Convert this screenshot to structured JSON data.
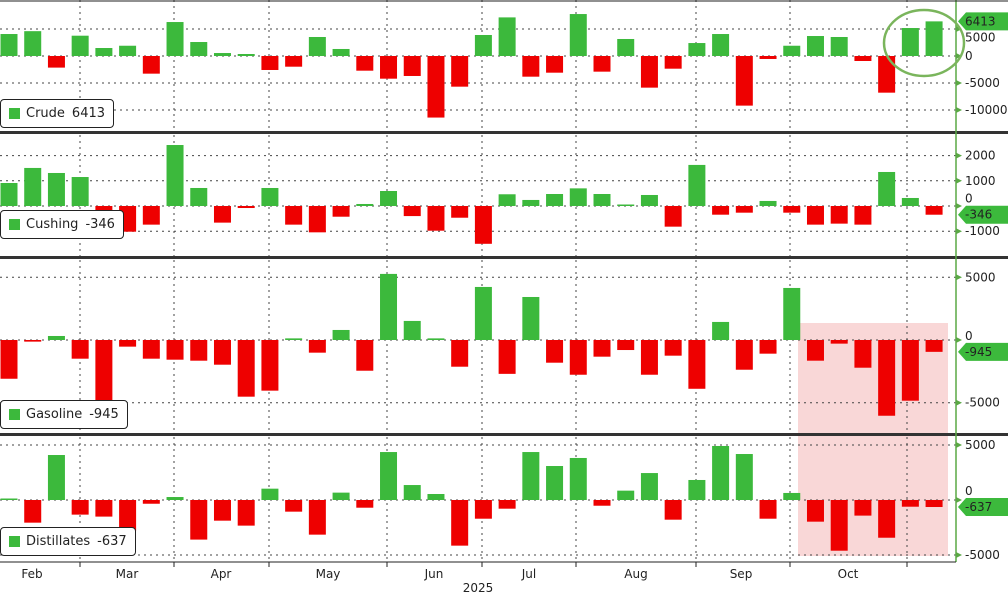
{
  "chart_data": {
    "type": "bar",
    "x_tick_labels": [
      "Feb",
      "Mar",
      "Apr",
      "May",
      "Jun",
      "Jul",
      "Aug",
      "Sep",
      "Oct"
    ],
    "year_label": "2025",
    "colors": {
      "positive": "#3cb93c",
      "negative": "#ee0000",
      "highlight_shade": "#f8d0d0",
      "circle": "#7ab55c",
      "axis": "#5aa845"
    },
    "grid": true,
    "panels": [
      {
        "name": "Crude",
        "last_value": "6413",
        "ticks": [
          "5000",
          "0",
          "-5000",
          "-10000"
        ],
        "values": [
          4070,
          4600,
          -2150,
          3760,
          1480,
          1900,
          -3270,
          6290,
          2590,
          550,
          370,
          -2590,
          -1980,
          3520,
          1300,
          -2720,
          -4200,
          -3700,
          -11400,
          -5680,
          3890,
          7150,
          -3830,
          -3090,
          7770,
          -2900,
          3150,
          -5860,
          -2350,
          2400,
          4070,
          -9190,
          -550,
          1900,
          3700,
          3520,
          -925,
          -6790,
          5180,
          6413
        ]
      },
      {
        "name": "Cushing",
        "last_value": "-346",
        "ticks": [
          "2000",
          "1000",
          "0",
          "-1000"
        ],
        "values": [
          913,
          1510,
          1310,
          1150,
          -700,
          -1020,
          -740,
          2420,
          715,
          -660,
          -80,
          715,
          -740,
          -1045,
          -425,
          80,
          595,
          -400,
          -980,
          -465,
          -1500,
          465,
          240,
          476,
          700,
          476,
          40,
          437,
          -820,
          1630,
          -345,
          -265,
          200,
          -265,
          -740,
          -700,
          -740,
          1350,
          318,
          -346
        ]
      },
      {
        "name": "Gasoline",
        "last_value": "-945",
        "ticks": [
          "5000",
          "0",
          "-5000"
        ],
        "values": [
          -3090,
          -130,
          320,
          -1490,
          -4870,
          -530,
          -1490,
          -1570,
          -1650,
          -1970,
          -4520,
          -4040,
          130,
          -1010,
          800,
          -2450,
          5270,
          1520,
          130,
          -2130,
          4230,
          -2700,
          3430,
          -1810,
          -2770,
          -1330,
          -800,
          -2770,
          -1250,
          -3890,
          1440,
          -2370,
          -1090,
          4150,
          -1650,
          -290,
          -2210,
          -6040,
          -4840,
          -945
        ]
      },
      {
        "name": "Distillates",
        "last_value": "-637",
        "ticks": [
          "5000",
          "0",
          "-5000"
        ],
        "values": [
          120,
          -2060,
          4090,
          -1330,
          -1510,
          -2790,
          -340,
          270,
          -3600,
          -1880,
          -2330,
          1030,
          -1060,
          -3150,
          670,
          -700,
          4360,
          1360,
          545,
          -4150,
          -1700,
          -790,
          4360,
          3090,
          3820,
          -520,
          850,
          2450,
          -1790,
          1820,
          4910,
          4180,
          -1700,
          640,
          -1970,
          -4610,
          -1420,
          -3430,
          -610,
          -637
        ]
      }
    ]
  }
}
